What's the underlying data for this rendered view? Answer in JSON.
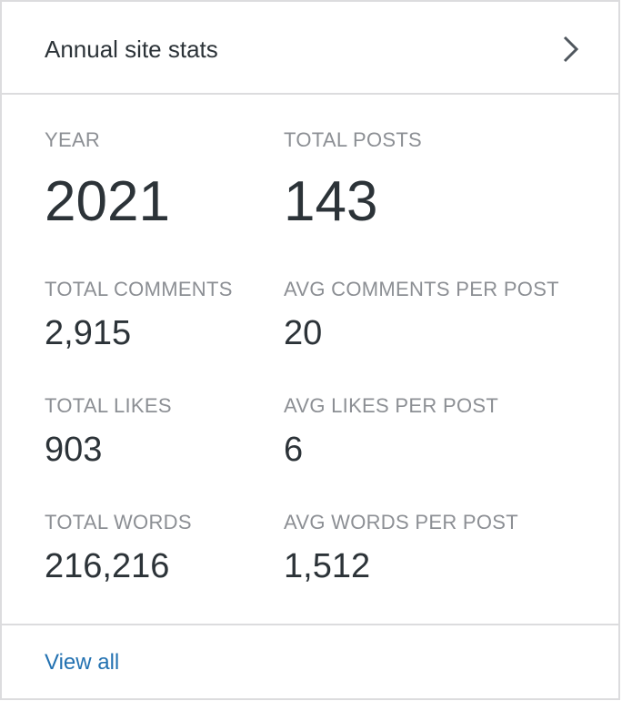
{
  "header": {
    "title": "Annual site stats"
  },
  "stats": [
    {
      "label": "YEAR",
      "value": "2021"
    },
    {
      "label": "TOTAL POSTS",
      "value": "143"
    },
    {
      "label": "TOTAL COMMENTS",
      "value": "2,915"
    },
    {
      "label": "AVG COMMENTS PER POST",
      "value": "20"
    },
    {
      "label": "TOTAL LIKES",
      "value": "903"
    },
    {
      "label": "AVG LIKES PER POST",
      "value": "6"
    },
    {
      "label": "TOTAL WORDS",
      "value": "216,216"
    },
    {
      "label": "AVG WORDS PER POST",
      "value": "1,512"
    }
  ],
  "footer": {
    "link": "View all"
  }
}
